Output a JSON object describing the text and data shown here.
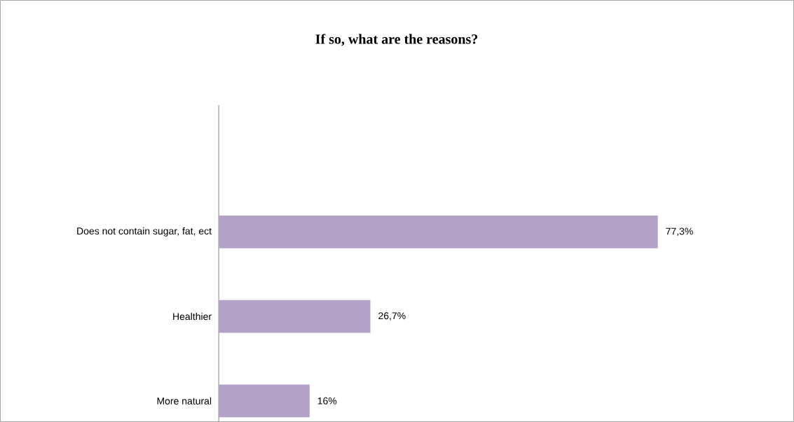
{
  "chart_data": {
    "type": "bar",
    "orientation": "horizontal",
    "title": "If so, what are the reasons?",
    "categories": [
      null,
      "Does not contain sugar, fat, ect",
      "Healthier",
      "More natural"
    ],
    "values": [
      null,
      77.3,
      26.7,
      16
    ],
    "value_labels": [
      null,
      "77,3%",
      "26,7%",
      "16%"
    ],
    "color": "#b3a2c7"
  }
}
